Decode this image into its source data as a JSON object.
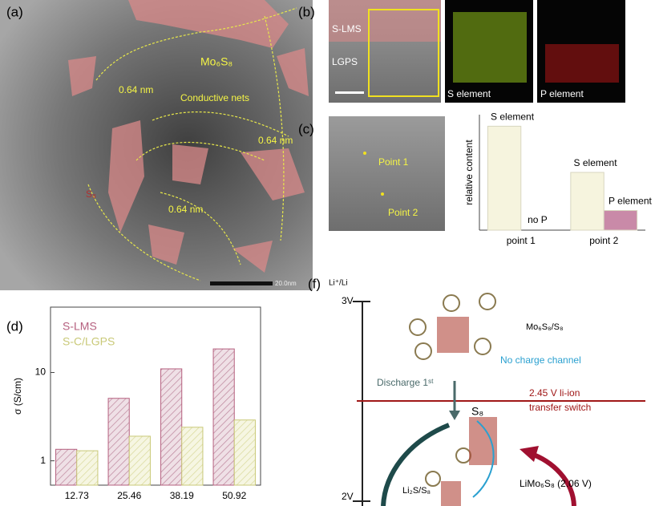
{
  "panels": {
    "a": {
      "label": "(a)",
      "phase": "Mo₆S₈",
      "nets": "Conductive nets",
      "spacings": [
        "0.64 nm",
        "0.64 nm",
        "0.64 nm"
      ],
      "sulfur": "S₈",
      "scale_bar": "20.0nm"
    },
    "b": {
      "label": "(b)",
      "layers": [
        "S-LMS",
        "LGPS"
      ],
      "maps": [
        "S element",
        "P element"
      ]
    },
    "c": {
      "label": "(c)",
      "points": [
        "Point 1",
        "Point 2"
      ]
    },
    "d": {
      "label": "(d)"
    },
    "f": {
      "label": "(f)",
      "reference": "Li⁺/Li",
      "potentials": [
        "3V",
        "2V"
      ],
      "compound": "Mo₆S₈/S₈",
      "channel": "No charge channel",
      "discharge": "Discharge 1ˢᵗ",
      "switch": [
        "2.45 V  li-ion",
        "transfer switch"
      ],
      "sulfur": "S₈",
      "product": "LiMo₆S₈  (2.06 V)",
      "mixture": "Li₂S/S₈"
    }
  },
  "chart_data": [
    {
      "type": "bar",
      "y_label": "relative content",
      "categories": [
        "point 1",
        "point 2"
      ],
      "series": [
        {
          "name": "S element",
          "color": "#f6f4de",
          "values": [
            0.9,
            0.5
          ]
        },
        {
          "name": "P element",
          "color": "#c98aa8",
          "values": [
            0,
            0.17
          ],
          "value_labels": [
            "no P",
            null
          ]
        }
      ],
      "ylim": [
        0,
        1
      ],
      "series_names_on_bars": true
    },
    {
      "type": "bar",
      "y_label": "σ (S/cm)",
      "categories": [
        "12.73",
        "25.46",
        "38.19",
        "50.92"
      ],
      "series": [
        {
          "name": "S-LMS",
          "color": "#b5607f",
          "values": [
            1.35,
            5.1,
            11,
            18.5
          ]
        },
        {
          "name": "S-C/LGPS",
          "color": "#c9c978",
          "values": [
            1.3,
            1.9,
            2.4,
            2.9
          ]
        }
      ],
      "ylim": [
        0.53,
        55
      ],
      "yticks": [
        1,
        10
      ],
      "log_scale": true,
      "legend": "upper left"
    }
  ]
}
